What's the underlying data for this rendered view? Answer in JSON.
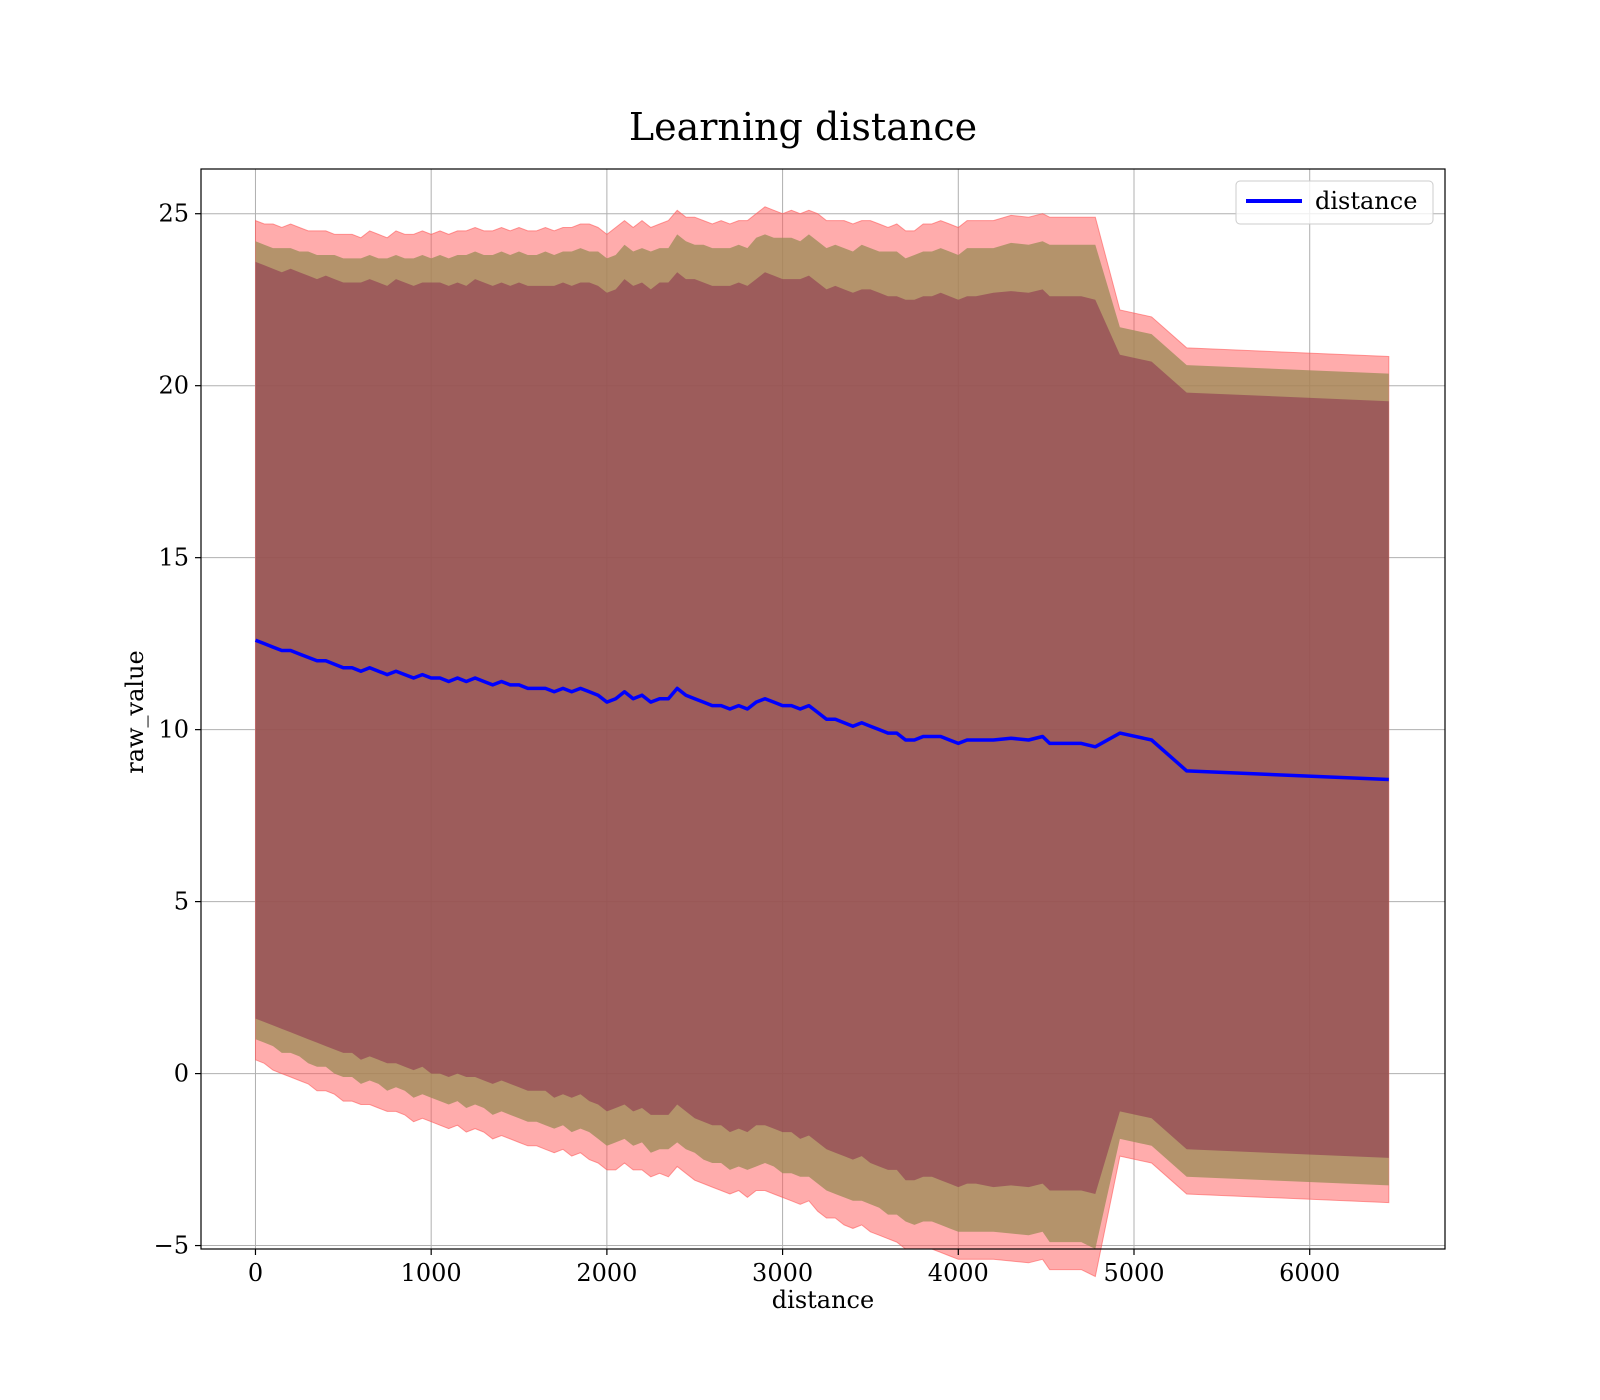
{
  "chart_data": {
    "type": "line",
    "title": "Learning distance",
    "xlabel": "distance",
    "ylabel": "raw_value",
    "xlim": [
      -310,
      6770
    ],
    "ylim": [
      -5.1,
      26.3
    ],
    "xticks": [
      0,
      1000,
      2000,
      3000,
      4000,
      5000,
      6000
    ],
    "yticks": [
      -5,
      0,
      5,
      10,
      15,
      20,
      25
    ],
    "ytick_labels": [
      "−5",
      "0",
      "5",
      "10",
      "15",
      "20",
      "25"
    ],
    "grid": true,
    "legend": {
      "position": "top-right",
      "entries": [
        "distance"
      ]
    },
    "colors": {
      "line": "#0000ff",
      "outer_band": "#ff5a5a",
      "mid_band": "#9b8b55",
      "inner_band": "#8b2f4f",
      "grid": "#b0b0b0"
    },
    "series": [
      {
        "name": "distance",
        "x": [
          0,
          50,
          100,
          150,
          200,
          250,
          300,
          350,
          400,
          450,
          500,
          550,
          600,
          650,
          700,
          750,
          800,
          850,
          900,
          950,
          1000,
          1050,
          1100,
          1150,
          1200,
          1250,
          1300,
          1350,
          1400,
          1450,
          1500,
          1550,
          1600,
          1650,
          1700,
          1750,
          1800,
          1850,
          1900,
          1950,
          2000,
          2050,
          2100,
          2150,
          2200,
          2250,
          2300,
          2350,
          2400,
          2450,
          2500,
          2550,
          2600,
          2650,
          2700,
          2750,
          2800,
          2850,
          2900,
          2950,
          3000,
          3050,
          3100,
          3150,
          3200,
          3250,
          3300,
          3350,
          3400,
          3450,
          3500,
          3550,
          3600,
          3650,
          3700,
          3750,
          3800,
          3850,
          3900,
          3950,
          4000,
          4050,
          4100,
          4200,
          4300,
          4400,
          4480,
          4520,
          4600,
          4700,
          4780,
          4920,
          5100,
          5300,
          6450
        ],
        "y": [
          12.6,
          12.5,
          12.4,
          12.3,
          12.3,
          12.2,
          12.1,
          12.0,
          12.0,
          11.9,
          11.8,
          11.8,
          11.7,
          11.8,
          11.7,
          11.6,
          11.7,
          11.6,
          11.5,
          11.6,
          11.5,
          11.5,
          11.4,
          11.5,
          11.4,
          11.5,
          11.4,
          11.3,
          11.4,
          11.3,
          11.3,
          11.2,
          11.2,
          11.2,
          11.1,
          11.2,
          11.1,
          11.2,
          11.1,
          11.0,
          10.8,
          10.9,
          11.1,
          10.9,
          11.0,
          10.8,
          10.9,
          10.9,
          11.2,
          11.0,
          10.9,
          10.8,
          10.7,
          10.7,
          10.6,
          10.7,
          10.6,
          10.8,
          10.9,
          10.8,
          10.7,
          10.7,
          10.6,
          10.7,
          10.5,
          10.3,
          10.3,
          10.2,
          10.1,
          10.2,
          10.1,
          10.0,
          9.9,
          9.9,
          9.7,
          9.7,
          9.8,
          9.8,
          9.8,
          9.7,
          9.6,
          9.7,
          9.7,
          9.7,
          9.75,
          9.7,
          9.8,
          9.6,
          9.6,
          9.6,
          9.5,
          9.9,
          9.7,
          8.8,
          8.55
        ],
        "band_inner_halfwidth": [
          11.0,
          11.0,
          11.0,
          11.0,
          11.1,
          11.1,
          11.1,
          11.1,
          11.2,
          11.2,
          11.2,
          11.2,
          11.3,
          11.3,
          11.3,
          11.3,
          11.4,
          11.4,
          11.4,
          11.4,
          11.5,
          11.5,
          11.5,
          11.5,
          11.5,
          11.6,
          11.6,
          11.6,
          11.6,
          11.6,
          11.7,
          11.7,
          11.7,
          11.7,
          11.8,
          11.8,
          11.8,
          11.8,
          11.9,
          11.9,
          11.9,
          11.9,
          12.0,
          12.0,
          12.0,
          12.0,
          12.1,
          12.1,
          12.1,
          12.1,
          12.2,
          12.2,
          12.2,
          12.2,
          12.3,
          12.3,
          12.3,
          12.3,
          12.4,
          12.4,
          12.4,
          12.4,
          12.5,
          12.5,
          12.5,
          12.5,
          12.6,
          12.6,
          12.6,
          12.6,
          12.7,
          12.7,
          12.7,
          12.7,
          12.8,
          12.8,
          12.8,
          12.8,
          12.9,
          12.9,
          12.9,
          12.9,
          12.9,
          13.0,
          13.0,
          13.0,
          13.0,
          13.0,
          13.0,
          13.0,
          13.0,
          11.0,
          11.0,
          11.0,
          11.0
        ],
        "band_mid_halfwidth": [
          11.6,
          11.6,
          11.6,
          11.7,
          11.7,
          11.7,
          11.8,
          11.8,
          11.8,
          11.9,
          11.9,
          11.9,
          12.0,
          12.0,
          12.0,
          12.1,
          12.1,
          12.1,
          12.2,
          12.2,
          12.2,
          12.3,
          12.3,
          12.3,
          12.4,
          12.4,
          12.4,
          12.5,
          12.5,
          12.5,
          12.6,
          12.6,
          12.6,
          12.7,
          12.7,
          12.7,
          12.8,
          12.8,
          12.8,
          12.9,
          12.9,
          12.9,
          13.0,
          13.0,
          13.0,
          13.1,
          13.1,
          13.1,
          13.2,
          13.2,
          13.2,
          13.3,
          13.3,
          13.3,
          13.4,
          13.4,
          13.4,
          13.5,
          13.5,
          13.5,
          13.6,
          13.6,
          13.6,
          13.7,
          13.7,
          13.7,
          13.8,
          13.8,
          13.8,
          13.9,
          13.9,
          13.9,
          14.0,
          14.0,
          14.0,
          14.1,
          14.1,
          14.1,
          14.2,
          14.2,
          14.2,
          14.3,
          14.3,
          14.3,
          14.4,
          14.4,
          14.4,
          14.5,
          14.5,
          14.5,
          14.6,
          11.8,
          11.8,
          11.8,
          11.8
        ],
        "band_outer_halfwidth": [
          12.2,
          12.2,
          12.3,
          12.3,
          12.4,
          12.4,
          12.4,
          12.5,
          12.5,
          12.5,
          12.6,
          12.6,
          12.6,
          12.7,
          12.7,
          12.7,
          12.8,
          12.8,
          12.9,
          12.9,
          12.9,
          13.0,
          13.0,
          13.0,
          13.1,
          13.1,
          13.1,
          13.2,
          13.2,
          13.2,
          13.3,
          13.3,
          13.3,
          13.4,
          13.4,
          13.4,
          13.5,
          13.5,
          13.6,
          13.6,
          13.6,
          13.7,
          13.7,
          13.7,
          13.8,
          13.8,
          13.8,
          13.9,
          13.9,
          13.9,
          14.0,
          14.0,
          14.0,
          14.1,
          14.1,
          14.1,
          14.2,
          14.2,
          14.3,
          14.3,
          14.3,
          14.4,
          14.4,
          14.4,
          14.5,
          14.5,
          14.5,
          14.6,
          14.6,
          14.6,
          14.7,
          14.7,
          14.7,
          14.8,
          14.8,
          14.8,
          14.9,
          14.9,
          15.0,
          15.0,
          15.0,
          15.1,
          15.1,
          15.1,
          15.2,
          15.2,
          15.2,
          15.3,
          15.3,
          15.3,
          15.4,
          12.3,
          12.3,
          12.3,
          12.3
        ]
      }
    ]
  }
}
